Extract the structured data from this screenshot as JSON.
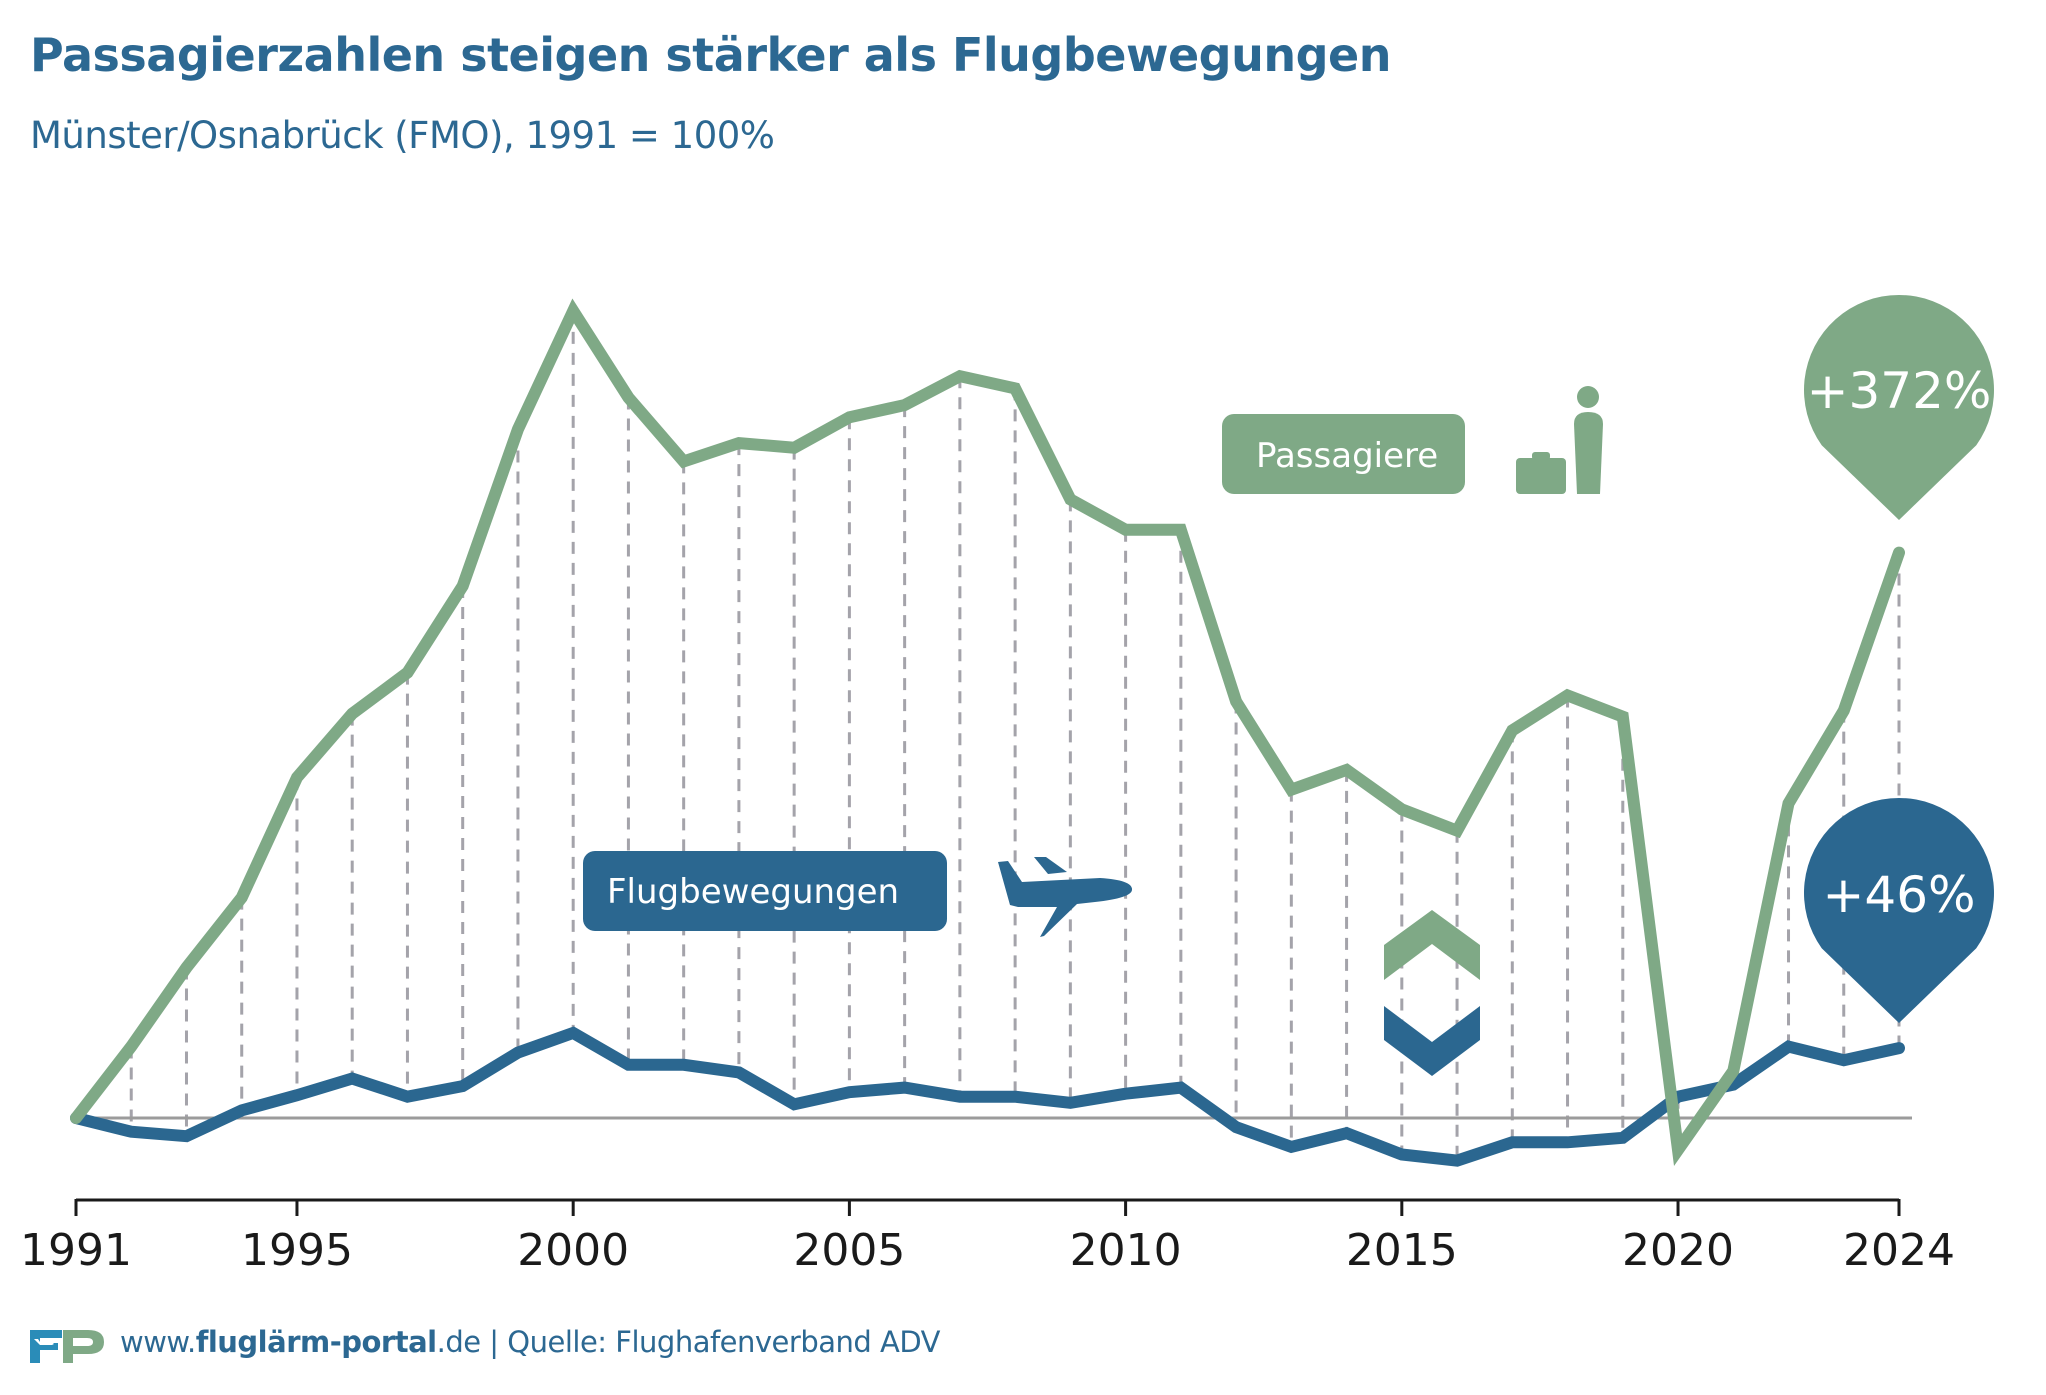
{
  "header": {
    "title": "Passagierzahlen steigen stärker als Flugbewegungen",
    "subtitle": "Münster/Osnabrück (FMO), 1991 = 100%"
  },
  "footer": {
    "url_prefix": "www.",
    "url_bold": "fluglärm-portal",
    "url_suffix": ".de",
    "separator": " | ",
    "source": "Quelle: Flughafenverband ADV"
  },
  "colors": {
    "passengers": "#7fa986",
    "flights": "#2b6790",
    "title": "#2c6892",
    "logo_f": "#2a8cb8",
    "logo_p": "#7fa986",
    "grid_dash": "#a4a3aa",
    "baseline": "#9b9b9b",
    "axis": "#1a1a1a"
  },
  "legend": {
    "passengers_label": "Passagiere",
    "passengers_icon": "passenger-with-suitcase-icon",
    "flights_label": "Flugbewegungen",
    "flights_icon": "airplane-icon",
    "comparison_icon": "up-down-chevrons-icon"
  },
  "annotations": {
    "passengers_change": "+372%",
    "flights_change": "+46%"
  },
  "chart_data": {
    "type": "line",
    "title": "Passagierzahlen steigen stärker als Flugbewegungen",
    "subtitle": "Münster/Osnabrück (FMO), 1991 = 100%",
    "xlabel": "",
    "ylabel": "",
    "baseline": 100,
    "grid": false,
    "x": [
      1991,
      1992,
      1993,
      1994,
      1995,
      1996,
      1997,
      1998,
      1999,
      2000,
      2001,
      2002,
      2003,
      2004,
      2005,
      2006,
      2007,
      2008,
      2009,
      2010,
      2011,
      2012,
      2013,
      2014,
      2015,
      2016,
      2017,
      2018,
      2019,
      2020,
      2021,
      2022,
      2023,
      2024
    ],
    "xticks": [
      "1991",
      "1995",
      "2000",
      "2005",
      "2010",
      "2015",
      "2020",
      "2024"
    ],
    "xlim": [
      1991,
      2024
    ],
    "ylim": [
      60,
      640
    ],
    "series": [
      {
        "name": "Passagiere",
        "color": "#7fa986",
        "values": [
          100,
          147,
          199,
          245,
          324,
          366,
          393,
          450,
          553,
          631,
          574,
          532,
          544,
          541,
          561,
          569,
          588,
          580,
          507,
          487,
          487,
          374,
          316,
          329,
          303,
          289,
          355,
          378,
          364,
          79,
          131,
          307,
          368,
          472
        ]
      },
      {
        "name": "Flugbewegungen",
        "color": "#2b6790",
        "values": [
          100,
          91,
          88,
          105,
          115,
          126,
          114,
          121,
          143,
          156,
          135,
          135,
          130,
          109,
          117,
          120,
          114,
          114,
          110,
          116,
          120,
          94,
          81,
          90,
          76,
          72,
          84,
          84,
          87,
          114,
          122,
          147,
          138,
          146
        ]
      }
    ],
    "annotations": [
      {
        "series": "Passagiere",
        "x": 2024,
        "text": "+372%"
      },
      {
        "series": "Flugbewegungen",
        "x": 2024,
        "text": "+46%"
      }
    ],
    "legend": [
      "Passagiere",
      "Flugbewegungen"
    ]
  }
}
